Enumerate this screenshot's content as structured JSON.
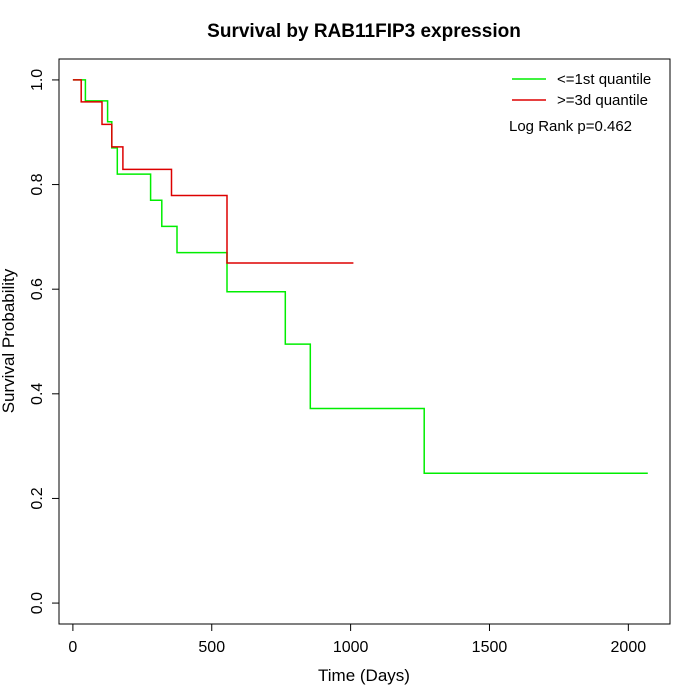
{
  "chart_data": {
    "type": "line",
    "title": "Survival by RAB11FIP3 expression",
    "xlabel": "Time (Days)",
    "ylabel": "Survival Probability",
    "xlim": [
      -50,
      2150
    ],
    "ylim": [
      -0.04,
      1.04
    ],
    "xticks": [
      0,
      500,
      1000,
      1500,
      2000
    ],
    "yticks": [
      0.0,
      0.2,
      0.4,
      0.6,
      0.8,
      1.0
    ],
    "xtick_labels": [
      "0",
      "500",
      "1000",
      "1500",
      "2000"
    ],
    "ytick_labels": [
      "0.0",
      "0.2",
      "0.4",
      "0.6",
      "0.8",
      "1.0"
    ],
    "grid": false,
    "legend_position": "top-right",
    "annotation": "Log Rank p=0.462",
    "series": [
      {
        "name": "<=1st quantile",
        "color": "#00ee00",
        "step": true,
        "x": [
          0,
          45,
          45,
          125,
          125,
          140,
          140,
          160,
          160,
          280,
          280,
          320,
          320,
          375,
          375,
          555,
          555,
          765,
          765,
          855,
          855,
          1265,
          1265,
          2070
        ],
        "y": [
          1.0,
          1.0,
          0.96,
          0.96,
          0.92,
          0.92,
          0.87,
          0.87,
          0.82,
          0.82,
          0.77,
          0.77,
          0.72,
          0.72,
          0.67,
          0.67,
          0.595,
          0.595,
          0.495,
          0.495,
          0.372,
          0.372,
          0.248,
          0.248
        ]
      },
      {
        "name": ">=3d quantile",
        "color": "#dd0000",
        "step": true,
        "x": [
          0,
          30,
          30,
          105,
          105,
          140,
          140,
          180,
          180,
          355,
          355,
          555,
          555,
          1010
        ],
        "y": [
          1.0,
          1.0,
          0.958,
          0.958,
          0.915,
          0.915,
          0.872,
          0.872,
          0.829,
          0.829,
          0.779,
          0.779,
          0.65,
          0.65
        ]
      }
    ]
  }
}
